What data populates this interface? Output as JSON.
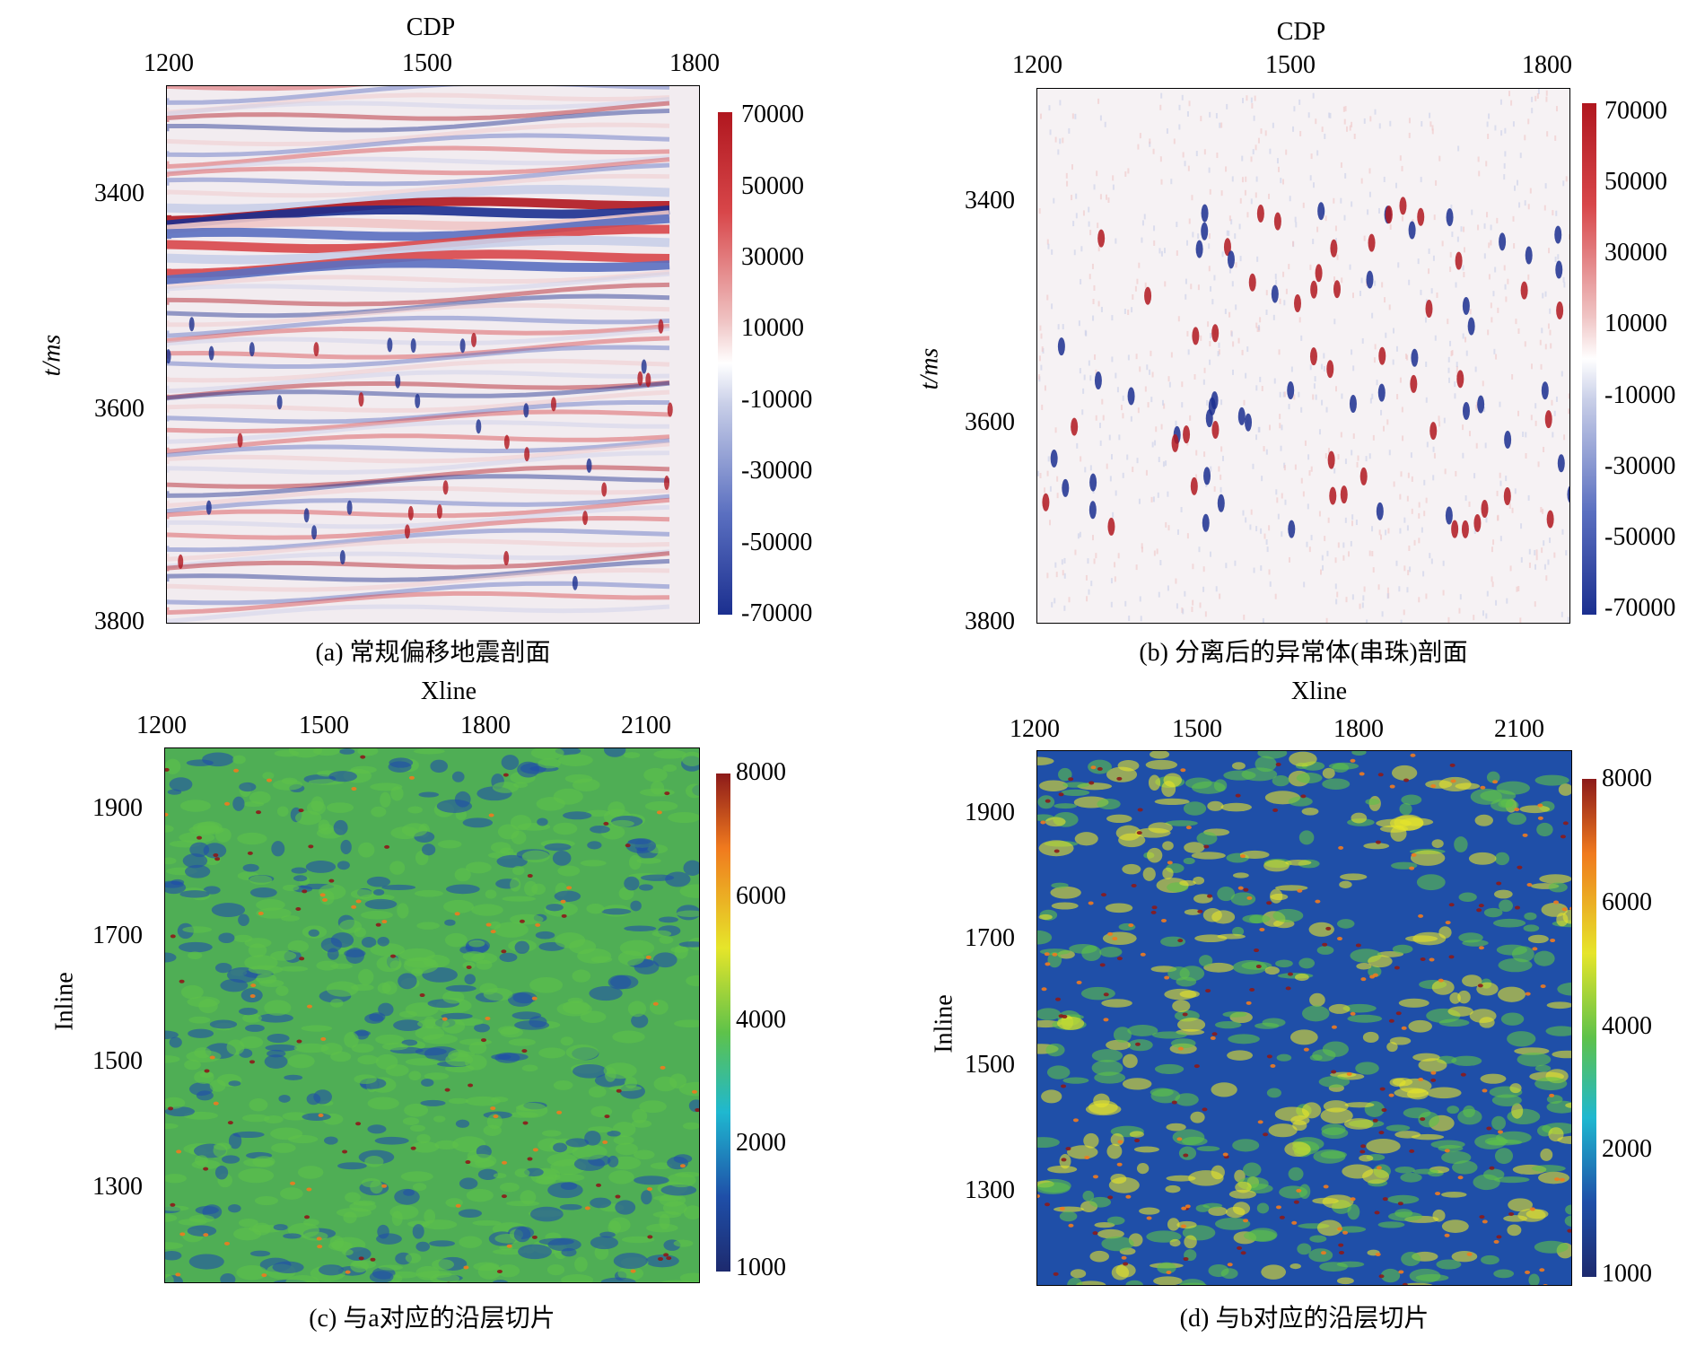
{
  "chart_data": [
    {
      "id": "a",
      "type": "heatmap",
      "caption": "(a) 常规偏移地震剖面",
      "xlabel": "CDP",
      "ylabel": "t/ms",
      "x_ticks": [
        "1200",
        "1500",
        "1800"
      ],
      "x_tick_values": [
        1200,
        1500,
        1800
      ],
      "xlim": [
        1200,
        1800
      ],
      "y_ticks": [
        "3400",
        "3600",
        "3800"
      ],
      "y_tick_values": [
        3400,
        3600,
        3800
      ],
      "ylim": [
        3300,
        3800
      ],
      "colorbar_ticks": [
        "70000",
        "50000",
        "30000",
        "10000",
        "-10000",
        "-30000",
        "-50000",
        "-70000"
      ],
      "colorbar_range": [
        -70000,
        70000
      ],
      "colormap": [
        "#1b2f8f",
        "#5a6fc0",
        "#c9cfe8",
        "#ffffff",
        "#f0c6c6",
        "#d8474a",
        "#b0171f"
      ]
    },
    {
      "id": "b",
      "type": "heatmap",
      "caption": "(b) 分离后的异常体(串珠)剖面",
      "xlabel": "CDP",
      "ylabel": "t/ms",
      "x_ticks": [
        "1200",
        "1500",
        "1800"
      ],
      "x_tick_values": [
        1200,
        1500,
        1800
      ],
      "xlim": [
        1200,
        1800
      ],
      "y_ticks": [
        "3400",
        "3600",
        "3800"
      ],
      "y_tick_values": [
        3400,
        3600,
        3800
      ],
      "ylim": [
        3300,
        3800
      ],
      "colorbar_ticks": [
        "70000",
        "50000",
        "30000",
        "10000",
        "-10000",
        "-30000",
        "-50000",
        "-70000"
      ],
      "colorbar_range": [
        -70000,
        70000
      ],
      "colormap": [
        "#1b2f8f",
        "#5a6fc0",
        "#c9cfe8",
        "#ffffff",
        "#f0c6c6",
        "#d8474a",
        "#b0171f"
      ]
    },
    {
      "id": "c",
      "type": "heatmap",
      "caption": "(c) 与a对应的沿层切片",
      "xlabel": "Xline",
      "ylabel": "Inline",
      "x_ticks": [
        "1200",
        "1500",
        "1800",
        "2100"
      ],
      "x_tick_values": [
        1200,
        1500,
        1800,
        2100
      ],
      "xlim": [
        1200,
        2200
      ],
      "y_ticks": [
        "1900",
        "1700",
        "1500",
        "1300"
      ],
      "y_tick_values": [
        1900,
        1700,
        1500,
        1300
      ],
      "ylim": [
        1150,
        2000
      ],
      "colorbar_ticks": [
        "8000",
        "6000",
        "4000",
        "2000",
        "1000"
      ],
      "colorbar_range": [
        1000,
        8000
      ],
      "colormap": [
        "#1d2a6e",
        "#1f4fa8",
        "#1fb8d0",
        "#5ec24a",
        "#e6e52a",
        "#f07a1e",
        "#8c1a1a"
      ]
    },
    {
      "id": "d",
      "type": "heatmap",
      "caption": "(d) 与b对应的沿层切片",
      "xlabel": "Xline",
      "ylabel": "Inline",
      "x_ticks": [
        "1200",
        "1500",
        "1800",
        "2100"
      ],
      "x_tick_values": [
        1200,
        1500,
        1800,
        2100
      ],
      "xlim": [
        1200,
        2200
      ],
      "y_ticks": [
        "1900",
        "1700",
        "1500",
        "1300"
      ],
      "y_tick_values": [
        1900,
        1700,
        1500,
        1300
      ],
      "ylim": [
        1150,
        2000
      ],
      "colorbar_ticks": [
        "8000",
        "6000",
        "4000",
        "2000",
        "1000"
      ],
      "colorbar_range": [
        1000,
        8000
      ],
      "colormap": [
        "#1d2a6e",
        "#1f4fa8",
        "#1fb8d0",
        "#5ec24a",
        "#e6e52a",
        "#f07a1e",
        "#8c1a1a"
      ]
    }
  ]
}
